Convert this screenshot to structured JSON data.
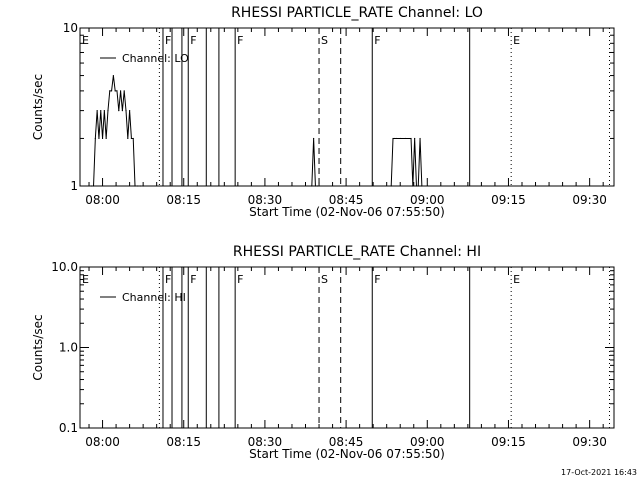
{
  "chart_data": [
    {
      "type": "line",
      "title": "RHESSI PARTICLE_RATE Channel: LO",
      "xlabel": "Start Time (02-Nov-06 07:55:50)",
      "ylabel": "Counts/sec",
      "yscale": "log",
      "ylim": [
        1,
        10
      ],
      "xlim": [
        "07:55:50",
        "09:34:30"
      ],
      "ytick_labels": [
        "1",
        "10"
      ],
      "xtick_labels": [
        "08:00",
        "08:15",
        "08:30",
        "08:45",
        "09:00",
        "09:15",
        "09:30"
      ],
      "legend_position": "top-left",
      "series": [
        {
          "name": "Channel: LO",
          "x": [
            "07:58:00",
            "07:58:20",
            "07:58:40",
            "07:59:00",
            "07:59:20",
            "07:59:40",
            "08:00:00",
            "08:00:20",
            "08:00:40",
            "08:01:00",
            "08:01:20",
            "08:01:40",
            "08:02:00",
            "08:02:20",
            "08:02:40",
            "08:03:00",
            "08:03:20",
            "08:03:40",
            "08:04:00",
            "08:04:20",
            "08:04:40",
            "08:05:00",
            "08:05:20",
            "08:05:40",
            "08:06:00",
            "08:06:30",
            "08:07:00",
            "08:07:30",
            "08:38:40",
            "08:39:00",
            "08:39:20",
            "08:39:40",
            "08:53:20",
            "08:53:40",
            "08:54:00",
            "08:54:20",
            "08:55:00",
            "08:56:00",
            "08:57:00",
            "08:57:20",
            "08:57:40",
            "08:58:00",
            "08:58:20",
            "08:58:40",
            "08:59:00"
          ],
          "values": [
            1,
            1,
            2,
            3,
            2,
            3,
            2,
            3,
            2,
            3,
            4,
            4,
            5,
            4,
            4,
            3,
            4,
            3,
            4,
            3,
            2,
            3,
            2,
            2,
            1,
            1,
            1,
            1,
            1,
            2,
            1,
            1,
            1,
            2,
            2,
            2,
            2,
            2,
            2,
            1,
            2,
            1,
            1,
            2,
            1
          ]
        }
      ],
      "annotations": [
        {
          "label": "E",
          "time": "07:55:50",
          "style": "dotted"
        },
        {
          "label": "",
          "time": "08:10:30",
          "style": "dotted"
        },
        {
          "label": "F",
          "time": "08:11:10",
          "style": "solid"
        },
        {
          "label": "",
          "time": "08:12:50",
          "style": "solid"
        },
        {
          "label": "",
          "time": "08:14:40",
          "style": "solid"
        },
        {
          "label": "F",
          "time": "08:15:50",
          "style": "solid"
        },
        {
          "label": "",
          "time": "08:19:10",
          "style": "solid"
        },
        {
          "label": "",
          "time": "08:21:30",
          "style": "solid"
        },
        {
          "label": "F",
          "time": "08:24:30",
          "style": "solid"
        },
        {
          "label": "S",
          "time": "08:40:00",
          "style": "dashed"
        },
        {
          "label": "",
          "time": "08:44:00",
          "style": "dashed"
        },
        {
          "label": "F",
          "time": "08:49:50",
          "style": "solid"
        },
        {
          "label": "",
          "time": "09:07:50",
          "style": "solid"
        },
        {
          "label": "E",
          "time": "09:15:30",
          "style": "dotted"
        },
        {
          "label": "",
          "time": "09:33:40",
          "style": "dotted"
        }
      ]
    },
    {
      "type": "line",
      "title": "RHESSI PARTICLE_RATE Channel: HI",
      "xlabel": "Start Time (02-Nov-06 07:55:50)",
      "ylabel": "Counts/sec",
      "yscale": "log",
      "ylim": [
        0.1,
        10
      ],
      "xlim": [
        "07:55:50",
        "09:34:30"
      ],
      "ytick_labels": [
        "0.1",
        "1.0",
        "10.0"
      ],
      "xtick_labels": [
        "08:00",
        "08:15",
        "08:30",
        "08:45",
        "09:00",
        "09:15",
        "09:30"
      ],
      "legend_position": "top-left",
      "series": [
        {
          "name": "Channel: HI",
          "x": [],
          "values": []
        }
      ],
      "annotations": [
        {
          "label": "E",
          "time": "07:55:50",
          "style": "dotted"
        },
        {
          "label": "",
          "time": "08:10:30",
          "style": "dotted"
        },
        {
          "label": "F",
          "time": "08:11:10",
          "style": "solid"
        },
        {
          "label": "",
          "time": "08:12:50",
          "style": "solid"
        },
        {
          "label": "",
          "time": "08:14:40",
          "style": "solid"
        },
        {
          "label": "F",
          "time": "08:15:50",
          "style": "solid"
        },
        {
          "label": "",
          "time": "08:19:10",
          "style": "solid"
        },
        {
          "label": "",
          "time": "08:21:30",
          "style": "solid"
        },
        {
          "label": "F",
          "time": "08:24:30",
          "style": "solid"
        },
        {
          "label": "S",
          "time": "08:40:00",
          "style": "dashed"
        },
        {
          "label": "",
          "time": "08:44:00",
          "style": "dashed"
        },
        {
          "label": "F",
          "time": "08:49:50",
          "style": "solid"
        },
        {
          "label": "",
          "time": "09:07:50",
          "style": "solid"
        },
        {
          "label": "E",
          "time": "09:15:30",
          "style": "dotted"
        },
        {
          "label": "",
          "time": "09:33:40",
          "style": "dotted"
        }
      ]
    }
  ],
  "footer": {
    "timestamp": "17-Oct-2021 16:43"
  },
  "colors": {
    "background": "#ffffff",
    "ink": "#000000"
  }
}
